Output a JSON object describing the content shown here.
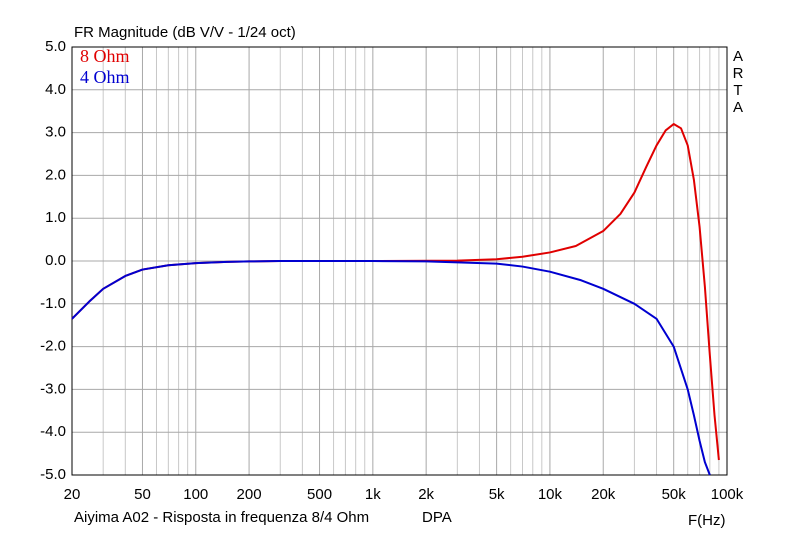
{
  "chart_data": {
    "type": "line",
    "title": "FR Magnitude (dB V/V - 1/24 oct)",
    "side_label": "ARTA",
    "footer": "Aiyima A02 - Risposta in frequenza 8/4 Ohm",
    "footer_tag": "DPA",
    "x_label": "F(Hz)",
    "xscale": "log",
    "xlim": [
      20,
      100000
    ],
    "ylim": [
      -5,
      5
    ],
    "xticks": [
      20,
      50,
      100,
      200,
      500,
      {
        "value": 1000,
        "label": "1k"
      },
      {
        "value": 2000,
        "label": "2k"
      },
      {
        "value": 5000,
        "label": "5k"
      },
      {
        "value": 10000,
        "label": "10k"
      },
      {
        "value": 20000,
        "label": "20k"
      },
      {
        "value": 50000,
        "label": "50k"
      },
      {
        "value": 100000,
        "label": "100k"
      }
    ],
    "xminorticks": [
      30,
      40,
      60,
      70,
      80,
      90,
      300,
      400,
      600,
      700,
      800,
      900,
      3000,
      4000,
      6000,
      7000,
      8000,
      9000,
      30000,
      40000,
      60000,
      70000,
      80000,
      90000
    ],
    "yticks": [
      {
        "value": 5,
        "label": "5.0"
      },
      {
        "value": 4,
        "label": "4.0"
      },
      {
        "value": 3,
        "label": "3.0"
      },
      {
        "value": 2,
        "label": "2.0"
      },
      {
        "value": 1,
        "label": "1.0"
      },
      {
        "value": 0,
        "label": "0.0"
      },
      {
        "value": -1,
        "label": "-1.0"
      },
      {
        "value": -2,
        "label": "-2.0"
      },
      {
        "value": -3,
        "label": "-3.0"
      },
      {
        "value": -4,
        "label": "-4.0"
      },
      {
        "value": -5,
        "label": "-5.0"
      }
    ],
    "grid": true,
    "legend": "top-left",
    "series": [
      {
        "name": "8 Ohm",
        "color": "#e00000",
        "x": [
          20,
          25,
          30,
          40,
          50,
          70,
          100,
          150,
          200,
          300,
          1000,
          3000,
          5000,
          7000,
          10000,
          14000,
          20000,
          25000,
          30000,
          35000,
          40000,
          45000,
          50000,
          55000,
          60000,
          65000,
          70000,
          75000,
          80000,
          85000,
          90000
        ],
        "values": [
          -1.35,
          -0.95,
          -0.65,
          -0.35,
          -0.2,
          -0.1,
          -0.05,
          -0.02,
          -0.01,
          0,
          0,
          0.01,
          0.04,
          0.1,
          0.2,
          0.35,
          0.7,
          1.1,
          1.6,
          2.2,
          2.7,
          3.05,
          3.2,
          3.1,
          2.7,
          1.9,
          0.8,
          -0.6,
          -2.2,
          -3.6,
          -4.65
        ]
      },
      {
        "name": "4 Ohm",
        "color": "#0000d0",
        "x": [
          20,
          25,
          30,
          40,
          50,
          70,
          100,
          150,
          200,
          300,
          1000,
          2000,
          5000,
          7000,
          10000,
          15000,
          20000,
          30000,
          40000,
          50000,
          60000,
          65000,
          70000,
          75000,
          80000
        ],
        "values": [
          -1.35,
          -0.95,
          -0.65,
          -0.35,
          -0.2,
          -0.1,
          -0.05,
          -0.02,
          -0.01,
          0,
          0,
          -0.01,
          -0.06,
          -0.13,
          -0.25,
          -0.45,
          -0.65,
          -1.0,
          -1.35,
          -2.0,
          -3.0,
          -3.6,
          -4.2,
          -4.7,
          -5.0
        ]
      }
    ]
  }
}
